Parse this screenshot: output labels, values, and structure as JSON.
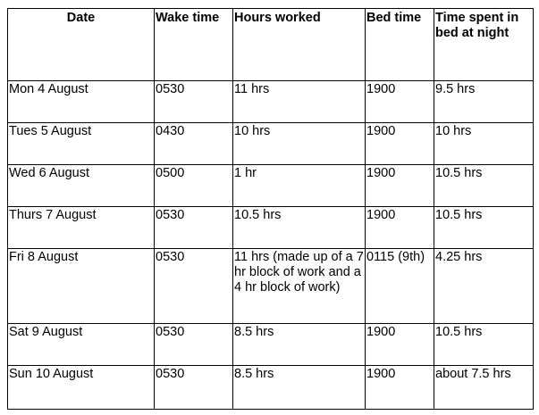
{
  "table": {
    "headers": [
      "Date",
      "Wake time",
      "Hours worked",
      "Bed time",
      "Time spent in bed at night"
    ],
    "rows": [
      [
        "Mon 4 August",
        "0530",
        "11 hrs",
        "1900",
        "9.5 hrs"
      ],
      [
        "Tues 5 August",
        "0430",
        "10 hrs",
        "1900",
        "10 hrs"
      ],
      [
        "Wed 6 August",
        "0500",
        "1 hr",
        "1900",
        "10.5 hrs"
      ],
      [
        "Thurs 7 August",
        "0530",
        "10.5 hrs",
        "1900",
        "10.5 hrs"
      ],
      [
        "Fri 8 August",
        "0530",
        "11 hrs (made up of a 7 hr block of work and a 4 hr block of work)",
        "0115 (9th)",
        "4.25 hrs"
      ],
      [
        "Sat 9 August",
        "0530",
        "8.5 hrs",
        "1900",
        "10.5 hrs"
      ],
      [
        "Sun 10 August",
        "0530",
        "8.5 hrs",
        "1900",
        "about 7.5 hrs"
      ]
    ]
  }
}
